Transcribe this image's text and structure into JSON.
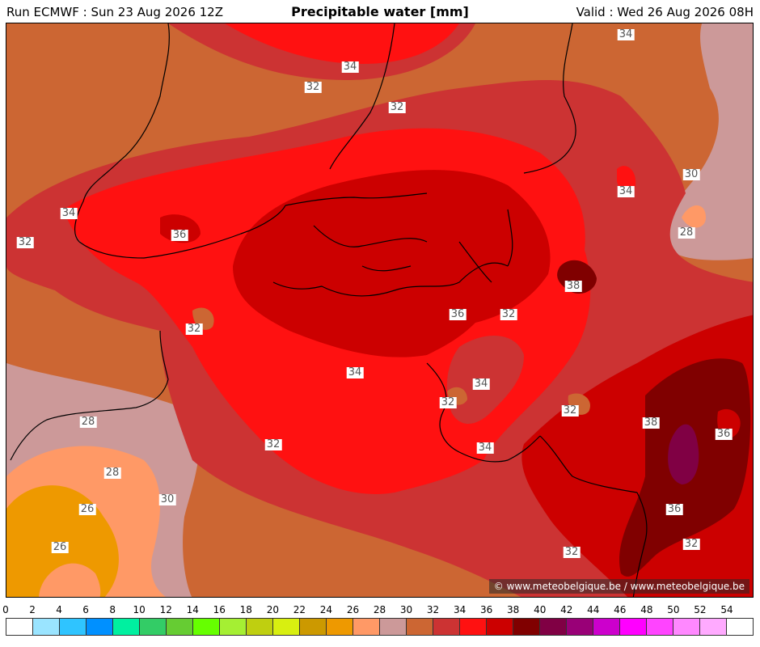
{
  "header": {
    "run": "Run ECMWF : Sun 23 Aug 2026 12Z",
    "title": "Precipitable water [mm]",
    "valid": "Valid : Wed 26 Aug 2026 08H"
  },
  "copyright": "© www.meteobelgique.be / www.meteobelgique.be",
  "contour_labels": [
    "34",
    "32",
    "32",
    "34",
    "32",
    "34",
    "36",
    "32",
    "36",
    "32",
    "38",
    "34",
    "32",
    "34",
    "34",
    "32",
    "34",
    "38",
    "36",
    "28",
    "30",
    "28",
    "32",
    "28",
    "30",
    "26",
    "26",
    "36",
    "32",
    "32",
    "34",
    "34"
  ],
  "scale": {
    "ticks": [
      "0",
      "2",
      "4",
      "6",
      "8",
      "10",
      "12",
      "14",
      "16",
      "18",
      "20",
      "22",
      "24",
      "26",
      "28",
      "30",
      "32",
      "34",
      "36",
      "38",
      "40",
      "42",
      "44",
      "46",
      "48",
      "50",
      "52",
      "54"
    ],
    "colors": [
      "#ffffff",
      "#9ae4ff",
      "#2fc4ff",
      "#0090ff",
      "#00f0a0",
      "#33cc66",
      "#66cc33",
      "#66ff00",
      "#a5ef33",
      "#bfcf10",
      "#d8ef10",
      "#cc9900",
      "#ee9900",
      "#ff9966",
      "#cc9999",
      "#cc6633",
      "#cc3333",
      "#ff1111",
      "#cc0000",
      "#800000",
      "#800044",
      "#990077",
      "#cc00cc",
      "#ff00ff",
      "#ff44ff",
      "#ff88ff",
      "#ffaaff",
      "#ffffff"
    ]
  }
}
